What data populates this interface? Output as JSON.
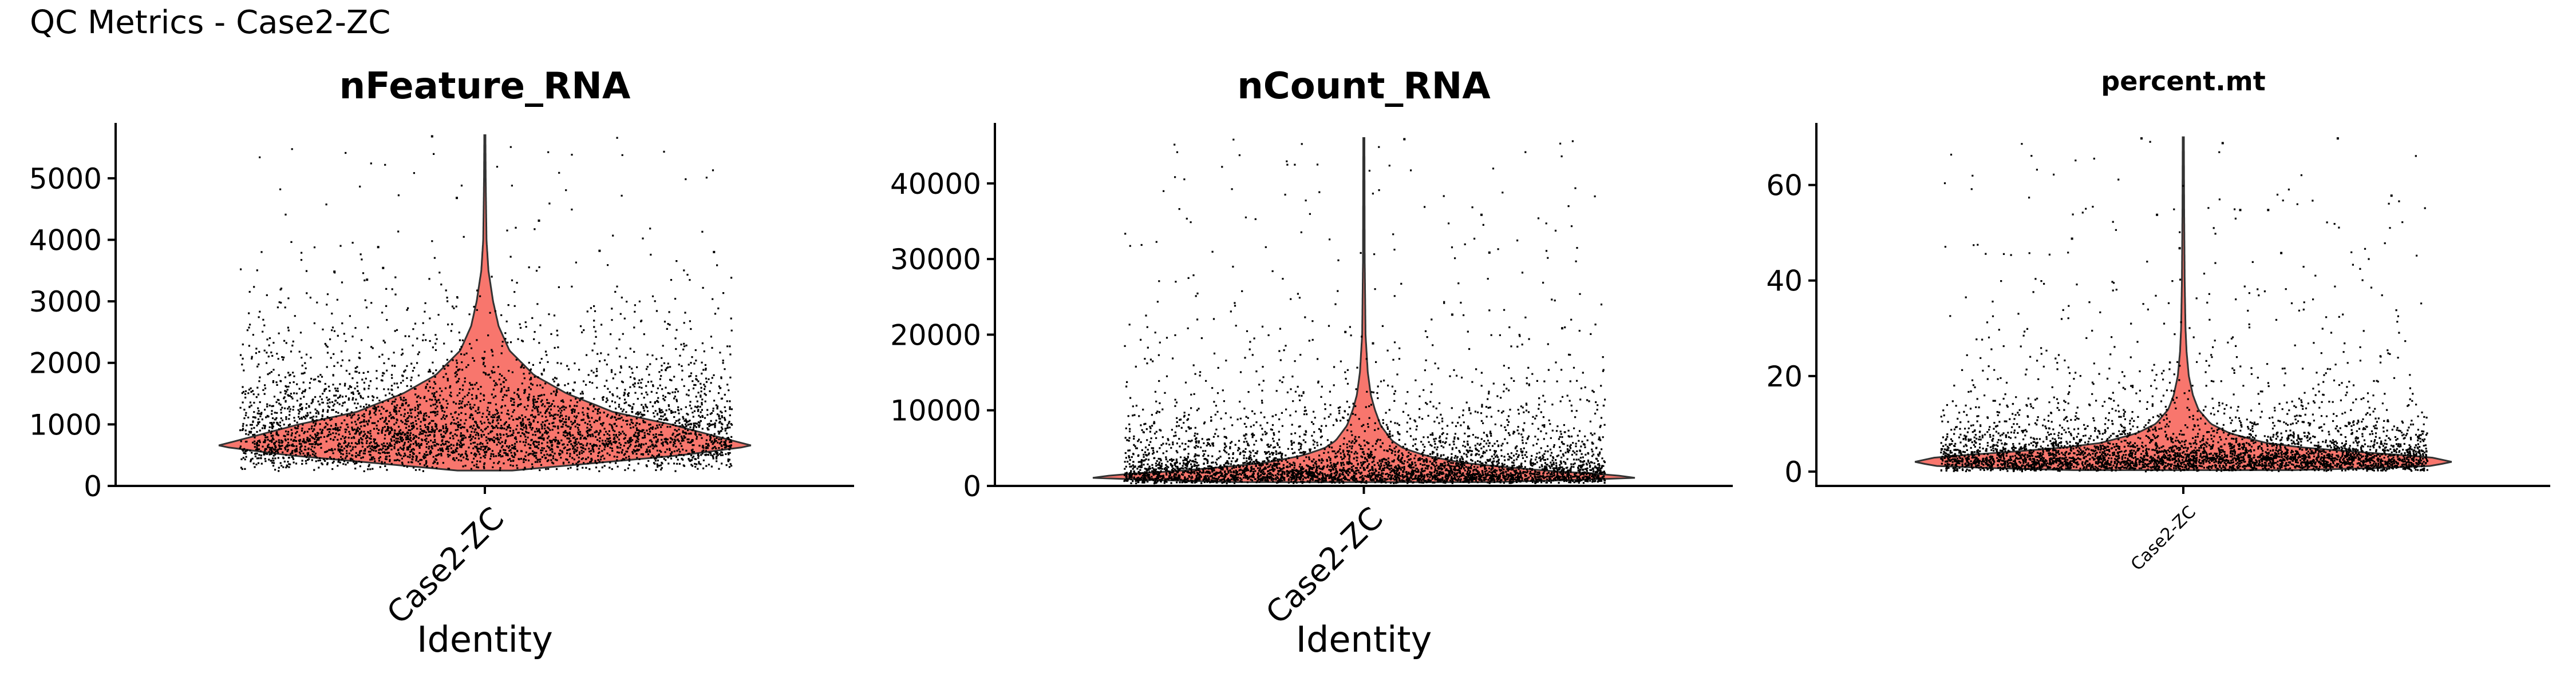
{
  "figure": {
    "title": "QC Metrics - Case2-ZC"
  },
  "colors": {
    "violin_fill": "#F8766D",
    "violin_edge": "#333333",
    "points": "#000000",
    "axis": "#000000"
  },
  "chart_data": [
    {
      "type": "violin",
      "title": "nFeature_RNA",
      "xlabel": "Identity",
      "ylabel": "",
      "categories": [
        "Case2-ZC"
      ],
      "yticks": [
        0,
        1000,
        2000,
        3000,
        4000,
        5000
      ],
      "ytick_labels": [
        "0",
        "1000",
        "2000",
        "3000",
        "4000",
        "5000"
      ],
      "ylim": [
        0,
        5900
      ],
      "grid": false,
      "legend": "none",
      "summary": {
        "min": 250,
        "median": 900,
        "max": 5700
      },
      "density_profile": [
        [
          250,
          0.1
        ],
        [
          500,
          0.72
        ],
        [
          650,
          0.98
        ],
        [
          800,
          0.85
        ],
        [
          1000,
          0.68
        ],
        [
          1200,
          0.47
        ],
        [
          1500,
          0.3
        ],
        [
          1800,
          0.18
        ],
        [
          2200,
          0.09
        ],
        [
          2600,
          0.05
        ],
        [
          3000,
          0.03
        ],
        [
          3500,
          0.013
        ],
        [
          4000,
          0.006
        ],
        [
          5000,
          0.003
        ],
        [
          5700,
          0.002
        ]
      ],
      "outliers": [
        5700,
        4700,
        4330,
        3840,
        3900,
        3820,
        3560,
        3500,
        3370
      ]
    },
    {
      "type": "violin",
      "title": "nCount_RNA",
      "xlabel": "Identity",
      "ylabel": "",
      "categories": [
        "Case2-ZC"
      ],
      "yticks": [
        0,
        10000,
        20000,
        30000,
        40000
      ],
      "ytick_labels": [
        "0",
        "10000",
        "20000",
        "30000",
        "40000"
      ],
      "ylim": [
        0,
        48000
      ],
      "grid": false,
      "legend": "none",
      "summary": {
        "min": 500,
        "median": 2000,
        "max": 46000
      },
      "density_profile": [
        [
          500,
          0.45
        ],
        [
          1000,
          0.98
        ],
        [
          1500,
          0.88
        ],
        [
          2000,
          0.65
        ],
        [
          3000,
          0.36
        ],
        [
          4000,
          0.22
        ],
        [
          5000,
          0.14
        ],
        [
          6000,
          0.1
        ],
        [
          8000,
          0.06
        ],
        [
          10000,
          0.04
        ],
        [
          12000,
          0.025
        ],
        [
          15000,
          0.014
        ],
        [
          20000,
          0.006
        ],
        [
          30000,
          0.003
        ],
        [
          46000,
          0.002
        ]
      ],
      "outliers": [
        46000,
        36000,
        31000,
        22800,
        21000,
        20500,
        19000
      ]
    },
    {
      "type": "violin",
      "title": "percent.mt",
      "xlabel": "",
      "ylabel": "",
      "categories": [
        "Case2-ZC"
      ],
      "yticks": [
        0,
        20,
        40,
        60
      ],
      "ytick_labels": [
        "0",
        "20",
        "40",
        "60"
      ],
      "ylim": [
        -3,
        73
      ],
      "grid": false,
      "legend": "none",
      "summary": {
        "min": 0.3,
        "median": 2.5,
        "max": 70
      },
      "density_profile": [
        [
          0.3,
          0.4
        ],
        [
          1,
          0.88
        ],
        [
          2,
          0.98
        ],
        [
          3,
          0.9
        ],
        [
          4,
          0.66
        ],
        [
          5,
          0.44
        ],
        [
          6,
          0.3
        ],
        [
          8,
          0.17
        ],
        [
          10,
          0.1
        ],
        [
          13,
          0.055
        ],
        [
          16,
          0.035
        ],
        [
          20,
          0.02
        ],
        [
          25,
          0.012
        ],
        [
          30,
          0.008
        ],
        [
          40,
          0.005
        ],
        [
          55,
          0.003
        ],
        [
          70,
          0.002
        ]
      ],
      "outliers": [
        70,
        70,
        69,
        58,
        55,
        55,
        54,
        49,
        47,
        46
      ]
    }
  ]
}
